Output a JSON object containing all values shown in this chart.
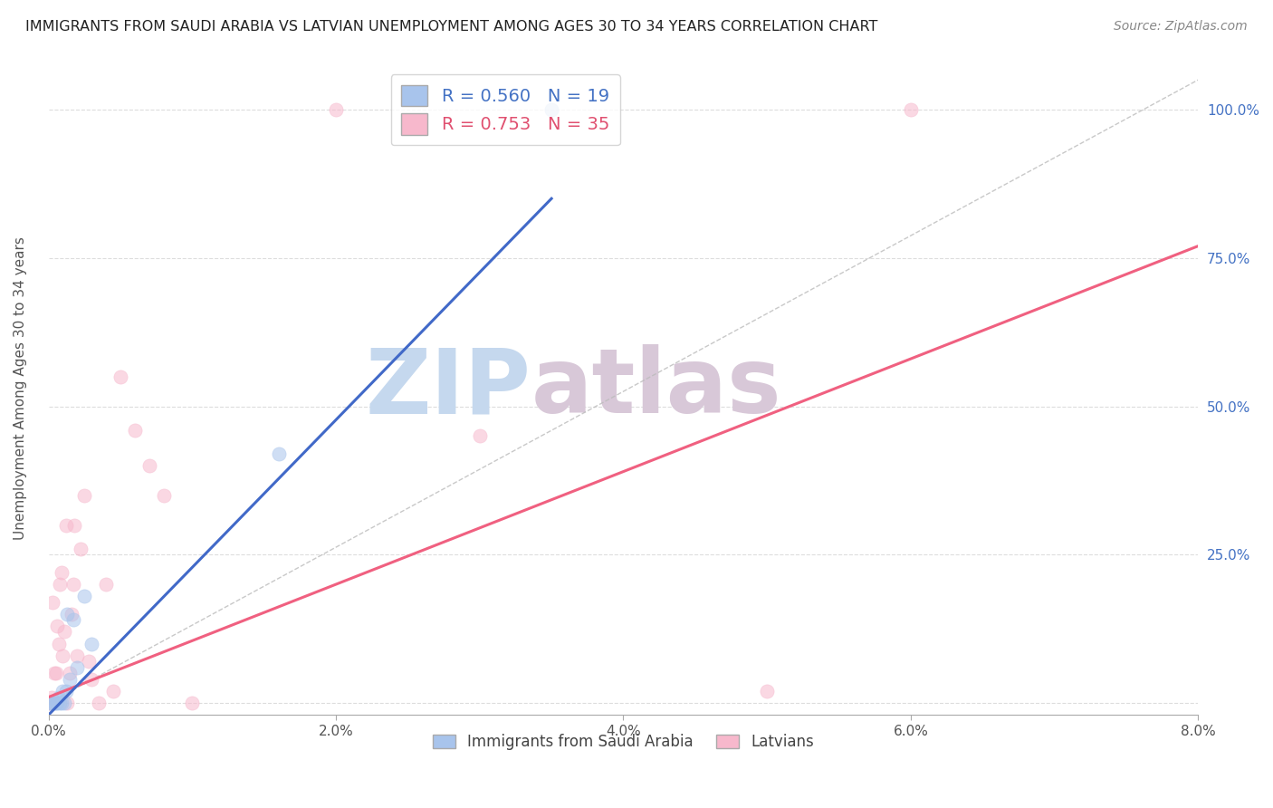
{
  "title": "IMMIGRANTS FROM SAUDI ARABIA VS LATVIAN UNEMPLOYMENT AMONG AGES 30 TO 34 YEARS CORRELATION CHART",
  "source": "Source: ZipAtlas.com",
  "xlabel_blue": "Immigrants from Saudi Arabia",
  "xlabel_pink": "Latvians",
  "ylabel": "Unemployment Among Ages 30 to 34 years",
  "xlim": [
    0.0,
    0.08
  ],
  "ylim": [
    -0.02,
    1.08
  ],
  "xticks": [
    0.0,
    0.02,
    0.04,
    0.06,
    0.08
  ],
  "xticklabels": [
    "0.0%",
    "2.0%",
    "4.0%",
    "6.0%",
    "8.0%"
  ],
  "yticks": [
    0.0,
    0.25,
    0.5,
    0.75,
    1.0
  ],
  "yticklabels": [
    "",
    "25.0%",
    "50.0%",
    "75.0%",
    "100.0%"
  ],
  "R_blue": 0.56,
  "N_blue": 19,
  "R_pink": 0.753,
  "N_pink": 35,
  "color_blue": "#A8C4EC",
  "color_pink": "#F7B8CC",
  "color_blue_line": "#4169C8",
  "color_pink_line": "#F06080",
  "color_blue_text": "#4472C4",
  "color_pink_text": "#E05070",
  "color_gray_line": "#BBBBBB",
  "watermark_zip": "#C8D8EE",
  "watermark_atlas": "#D8C8D8",
  "watermark_text": "ZIPatlas",
  "background_color": "#FFFFFF",
  "grid_color": "#DDDDDD",
  "blue_x": [
    0.0,
    0.0002,
    0.0004,
    0.0005,
    0.0006,
    0.0007,
    0.0008,
    0.0009,
    0.001,
    0.0011,
    0.0012,
    0.0013,
    0.0015,
    0.0017,
    0.002,
    0.0025,
    0.003,
    0.016,
    0.035
  ],
  "blue_y": [
    0.0,
    0.0,
    0.0,
    0.0,
    0.0,
    0.01,
    0.0,
    0.0,
    0.02,
    0.0,
    0.02,
    0.15,
    0.04,
    0.14,
    0.06,
    0.18,
    0.1,
    0.42,
    1.0
  ],
  "pink_x": [
    0.0,
    0.0001,
    0.0002,
    0.0003,
    0.0004,
    0.0005,
    0.0006,
    0.0007,
    0.0008,
    0.0009,
    0.001,
    0.0011,
    0.0012,
    0.0013,
    0.0015,
    0.0016,
    0.0017,
    0.0018,
    0.002,
    0.0022,
    0.0025,
    0.0028,
    0.003,
    0.0035,
    0.004,
    0.0045,
    0.005,
    0.006,
    0.007,
    0.008,
    0.01,
    0.02,
    0.03,
    0.05,
    0.06
  ],
  "pink_y": [
    0.0,
    0.0,
    0.01,
    0.17,
    0.05,
    0.05,
    0.13,
    0.1,
    0.2,
    0.22,
    0.08,
    0.12,
    0.3,
    0.0,
    0.05,
    0.15,
    0.2,
    0.3,
    0.08,
    0.26,
    0.35,
    0.07,
    0.04,
    0.0,
    0.2,
    0.02,
    0.55,
    0.46,
    0.4,
    0.35,
    0.0,
    1.0,
    0.45,
    0.02,
    1.0
  ],
  "blue_trendline_x": [
    0.0,
    0.035
  ],
  "blue_trendline_y": [
    -0.02,
    0.85
  ],
  "pink_trendline_x": [
    0.0,
    0.08
  ],
  "pink_trendline_y": [
    0.01,
    0.77
  ],
  "gray_trendline_x": [
    0.0,
    0.08
  ],
  "gray_trendline_y": [
    0.0,
    1.05
  ],
  "marker_size": 120
}
